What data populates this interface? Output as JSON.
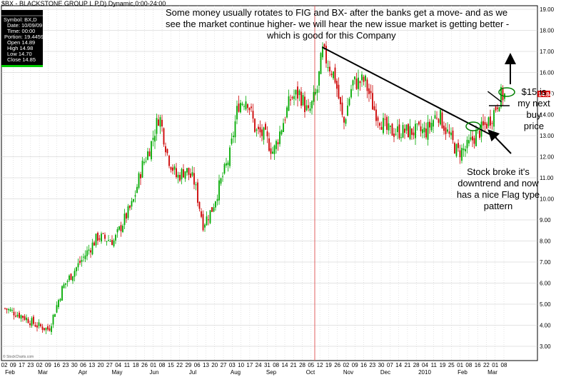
{
  "header": {
    "title": "$BX - BLACKSTONE GROUP L P,D) Dynamic,0:00-24:00"
  },
  "info_box": {
    "lines": [
      "Symbol: BX,D",
      "Date: 10/09/09",
      "Time: 00:00",
      "Portion: 19.4459459",
      "Open 14.89",
      "High 14.98",
      "Low 14.70",
      "Close 14.85"
    ]
  },
  "watermark": "© StockCharts.com",
  "last_price": "14.84",
  "colors": {
    "up": "#00aa00",
    "down": "#cc0000",
    "grid": "#c8c8c8",
    "price_tag": "#d40000",
    "marker": "#008000",
    "vline": "#e06060"
  },
  "annotations": {
    "top": [
      "Some money usually rotates to FIG and BX- after the banks get a move- and as we",
      "see the market continue higher- we will hear the new issue market is getting better -",
      "which is good for this Company"
    ],
    "right": [
      "$15 is",
      "my next",
      "buy",
      "price"
    ],
    "bottom": [
      "Stock broke it's",
      "downtrend and now",
      "has a nice Flag type",
      "pattern"
    ]
  },
  "chart_data": {
    "type": "candlestick",
    "title": "$BX - BLACKSTONE GROUP L P,D) Dynamic,0:00-24:00",
    "y_axis": {
      "range": [
        3,
        19
      ],
      "ticks": [
        "3.00",
        "4.00",
        "5.00",
        "6.00",
        "7.00",
        "8.00",
        "9.00",
        "10.00",
        "11.00",
        "12.00",
        "13.00",
        "14.00",
        "15.00",
        "16.00",
        "17.00",
        "18.00",
        "19.00"
      ]
    },
    "x_day_labels": [
      "02",
      "09",
      "17",
      "23",
      "02",
      "09",
      "16",
      "23",
      "30",
      "06",
      "13",
      "20",
      "27",
      "04",
      "11",
      "18",
      "26",
      "01",
      "08",
      "15",
      "22",
      "29",
      "06",
      "13",
      "20",
      "27",
      "03",
      "10",
      "17",
      "24",
      "31",
      "08",
      "14",
      "21",
      "28",
      "05",
      "12",
      "19",
      "26",
      "02",
      "09",
      "16",
      "23",
      "30",
      "07",
      "14",
      "21",
      "28",
      "04",
      "11",
      "19",
      "25",
      "01",
      "08",
      "16",
      "22",
      "01",
      "08"
    ],
    "x_month_labels": [
      "Feb",
      "Mar",
      "Apr",
      "May",
      "Jun",
      "Jul",
      "Aug",
      "Sep",
      "Oct",
      "Nov",
      "Dec",
      "2010",
      "Feb",
      "Mar"
    ],
    "close_path": [
      [
        "2009-02-02",
        4.8
      ],
      [
        "2009-02-17",
        4.4
      ],
      [
        "2009-02-27",
        4.0
      ],
      [
        "2009-03-09",
        3.8
      ],
      [
        "2009-03-20",
        5.8
      ],
      [
        "2009-04-03",
        7.0
      ],
      [
        "2009-04-17",
        8.2
      ],
      [
        "2009-04-30",
        8.0
      ],
      [
        "2009-05-08",
        9.0
      ],
      [
        "2009-05-15",
        9.8
      ],
      [
        "2009-05-22",
        11.5
      ],
      [
        "2009-05-29",
        12.5
      ],
      [
        "2009-06-05",
        14.0
      ],
      [
        "2009-06-12",
        12.0
      ],
      [
        "2009-06-19",
        11.0
      ],
      [
        "2009-06-26",
        11.4
      ],
      [
        "2009-07-03",
        10.8
      ],
      [
        "2009-07-10",
        8.8
      ],
      [
        "2009-07-17",
        9.5
      ],
      [
        "2009-07-24",
        10.8
      ],
      [
        "2009-07-31",
        12.0
      ],
      [
        "2009-08-07",
        14.5
      ],
      [
        "2009-08-14",
        14.8
      ],
      [
        "2009-08-21",
        13.2
      ],
      [
        "2009-08-28",
        13.0
      ],
      [
        "2009-09-04",
        12.2
      ],
      [
        "2009-09-11",
        13.5
      ],
      [
        "2009-09-18",
        14.8
      ],
      [
        "2009-09-25",
        15.0
      ],
      [
        "2009-10-02",
        14.0
      ],
      [
        "2009-10-09",
        15.2
      ],
      [
        "2009-10-13",
        17.0
      ],
      [
        "2009-10-23",
        15.8
      ],
      [
        "2009-10-30",
        13.5
      ],
      [
        "2009-11-06",
        15.5
      ],
      [
        "2009-11-16",
        15.6
      ],
      [
        "2009-11-23",
        14.3
      ],
      [
        "2009-12-04",
        13.2
      ],
      [
        "2009-12-18",
        13.2
      ],
      [
        "2010-01-04",
        13.2
      ],
      [
        "2010-01-13",
        14.1
      ],
      [
        "2010-01-22",
        13.0
      ],
      [
        "2010-01-29",
        12.2
      ],
      [
        "2010-02-05",
        12.4
      ],
      [
        "2010-02-12",
        13.0
      ],
      [
        "2010-02-19",
        13.4
      ],
      [
        "2010-02-26",
        14.0
      ],
      [
        "2010-03-04",
        14.9
      ]
    ],
    "drawn_lines": [
      {
        "name": "downtrend",
        "from": [
          "2009-10-13",
          17.2
        ],
        "to": [
          "2010-03-01",
          12.9
        ]
      },
      {
        "name": "flag",
        "from": [
          "2010-02-22",
          15.1
        ],
        "to": [
          "2010-03-05",
          14.6
        ]
      }
    ]
  }
}
